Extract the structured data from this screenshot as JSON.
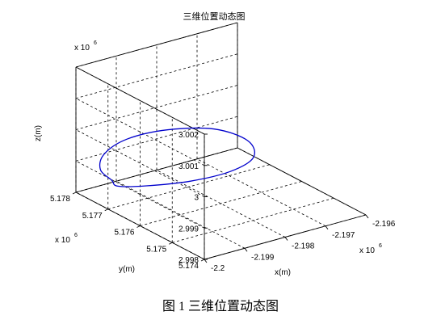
{
  "chart_data": {
    "type": "line",
    "title": "三维位置动态图",
    "xlabel": "x(m)",
    "ylabel": "y(m)",
    "zlabel": "z(m)",
    "x_ticks": [
      "-2.2",
      "-2.199",
      "-2.198",
      "-2.197",
      "-2.196"
    ],
    "y_ticks": [
      "5.174",
      "5.175",
      "5.176",
      "5.177",
      "5.178"
    ],
    "z_ticks": [
      "2.998",
      "2.999",
      "3",
      "3.001",
      "3.002"
    ],
    "x_multiplier": {
      "base": "x 10",
      "exp": "6"
    },
    "y_multiplier": {
      "base": "x 10",
      "exp": "6"
    },
    "z_multiplier": {
      "base": "x 10",
      "exp": "6"
    },
    "xlim": [
      -2.2,
      -2.196
    ],
    "ylim": [
      5.174,
      5.178
    ],
    "zlim": [
      2.998,
      3.002
    ],
    "grid": true,
    "series": [
      {
        "color": "#0000cc",
        "x": [
          -2.19947,
          -2.19929,
          -2.19901,
          -2.19879,
          -2.19868,
          -2.19877,
          -2.19903,
          -2.1994,
          -2.19969,
          -2.19982,
          -2.19976,
          -2.19953,
          -2.19947
        ],
        "y": [
          5.17736,
          5.1767,
          5.17569,
          5.17472,
          5.17413,
          5.1742,
          5.17491,
          5.17591,
          5.1768,
          5.17735,
          5.17754,
          5.17748,
          5.17736
        ],
        "z": [
          2.99835,
          2.99865,
          2.99924,
          2.99999,
          3.00072,
          3.00125,
          3.00133,
          3.0009,
          3.00023,
          2.9995,
          2.99889,
          2.9985,
          2.99835
        ]
      }
    ]
  },
  "caption": "图 1  三维位置动态图"
}
